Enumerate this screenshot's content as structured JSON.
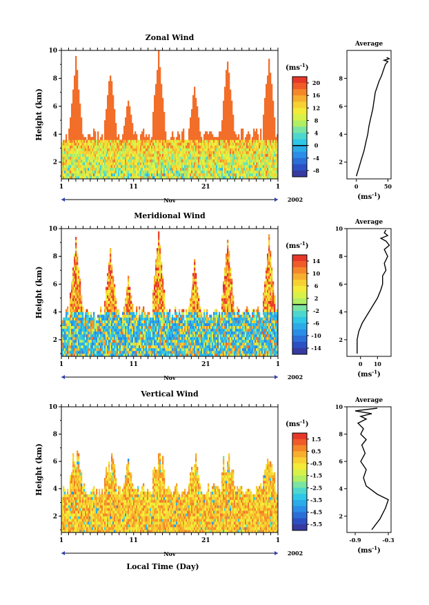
{
  "chart_data": [
    {
      "type": "heatmap",
      "title": "Zonal Wind",
      "ylabel": "Height (km)",
      "ylim": [
        0.8,
        10
      ],
      "y_ticks": [
        "2",
        "4",
        "6",
        "8",
        "10"
      ],
      "x_ticks": [
        "1",
        "11",
        "21",
        "1"
      ],
      "month_label": "Nov",
      "year_label": "2002",
      "colorbar": {
        "unit_label": "(ms",
        "unit_exp": "-1",
        "unit_close": ")",
        "ticks": [
          "20",
          "16",
          "12",
          "8",
          "4",
          "0",
          "-4",
          "-8"
        ],
        "values": [
          -10,
          22
        ],
        "zero_line": 0
      },
      "profile": {
        "title": "Average",
        "x_ticks": [
          "0",
          "50"
        ],
        "xlim": [
          -15,
          55
        ],
        "y_ticks": [
          "2",
          "4",
          "6",
          "8"
        ],
        "ylim": [
          0.8,
          10
        ],
        "unit_label": "(ms",
        "unit_exp": "-1",
        "unit_close": ")",
        "x": [
          0,
          4,
          8,
          12,
          15,
          18,
          20,
          23,
          26,
          28,
          30,
          33,
          36,
          40,
          43,
          46,
          50,
          44,
          52,
          48
        ],
        "y": [
          1.0,
          1.6,
          2.2,
          2.8,
          3.4,
          4.0,
          4.6,
          5.2,
          5.8,
          6.4,
          7.0,
          7.4,
          7.8,
          8.2,
          8.6,
          9.0,
          9.2,
          9.3,
          9.4,
          9.5
        ]
      }
    },
    {
      "type": "heatmap",
      "title": "Meridional Wind",
      "ylabel": "Height (km)",
      "ylim": [
        0.8,
        10
      ],
      "y_ticks": [
        "2",
        "4",
        "6",
        "8",
        "10"
      ],
      "x_ticks": [
        "1",
        "11",
        "21",
        "1"
      ],
      "month_label": "Nov",
      "year_label": "2002",
      "colorbar": {
        "unit_label": "(ms",
        "unit_exp": "-1",
        "unit_close": ")",
        "ticks": [
          "14",
          "10",
          "6",
          "2",
          "-2",
          "-6",
          "-10",
          "-14"
        ],
        "values": [
          -16,
          16
        ],
        "zero_line": 0
      },
      "profile": {
        "title": "Average",
        "x_ticks": [
          "0",
          "10"
        ],
        "xlim": [
          -8,
          18
        ],
        "y_ticks": [
          "2",
          "4",
          "6",
          "8",
          "10"
        ],
        "ylim": [
          0.8,
          10
        ],
        "unit_label": "(ms",
        "unit_exp": "-1",
        "unit_close": ")",
        "x": [
          -2,
          -2,
          -1,
          1,
          4,
          7,
          10,
          12,
          13,
          13,
          15,
          14,
          16,
          14,
          17,
          15,
          12,
          16,
          14,
          15
        ],
        "y": [
          1.0,
          2.0,
          2.6,
          3.2,
          3.8,
          4.4,
          5.0,
          5.6,
          6.0,
          6.6,
          7.0,
          7.5,
          8.0,
          8.5,
          8.8,
          9.1,
          9.3,
          9.5,
          9.7,
          9.9
        ]
      }
    },
    {
      "type": "heatmap",
      "title": "Vertical Wind",
      "ylabel": "Height (km)",
      "xlabel": "Local Time (Day)",
      "ylim": [
        0.8,
        10
      ],
      "y_ticks": [
        "2",
        "4",
        "6",
        "8",
        "10"
      ],
      "x_ticks": [
        "1",
        "11",
        "21",
        "1"
      ],
      "month_label": "Nov",
      "year_label": "2002",
      "colorbar": {
        "unit_label": "(ms",
        "unit_exp": "-1",
        "unit_close": ")",
        "ticks": [
          "1.5",
          "0.5",
          "-0.5",
          "-1.5",
          "-2.5",
          "-3.5",
          "-4.5",
          "-5.5"
        ],
        "values": [
          -6,
          2
        ]
      },
      "profile": {
        "title": "Average",
        "x_ticks": [
          "-0.9",
          "-0.3"
        ],
        "xlim": [
          -1.05,
          -0.25
        ],
        "y_ticks": [
          "2",
          "4",
          "6",
          "8",
          "10"
        ],
        "ylim": [
          0.8,
          10
        ],
        "unit_label": "(ms",
        "unit_exp": "-1",
        "unit_close": ")",
        "x": [
          -0.6,
          -0.45,
          -0.35,
          -0.3,
          -0.5,
          -0.7,
          -0.75,
          -0.7,
          -0.8,
          -0.72,
          -0.78,
          -0.7,
          -0.8,
          -0.75,
          -0.85,
          -0.7,
          -0.8,
          -0.6,
          -0.9,
          -0.5
        ],
        "y": [
          1.0,
          1.8,
          2.6,
          3.2,
          3.6,
          4.2,
          4.8,
          5.4,
          6.0,
          6.6,
          7.2,
          7.6,
          8.0,
          8.4,
          8.8,
          9.1,
          9.3,
          9.5,
          9.7,
          9.9
        ]
      }
    }
  ]
}
